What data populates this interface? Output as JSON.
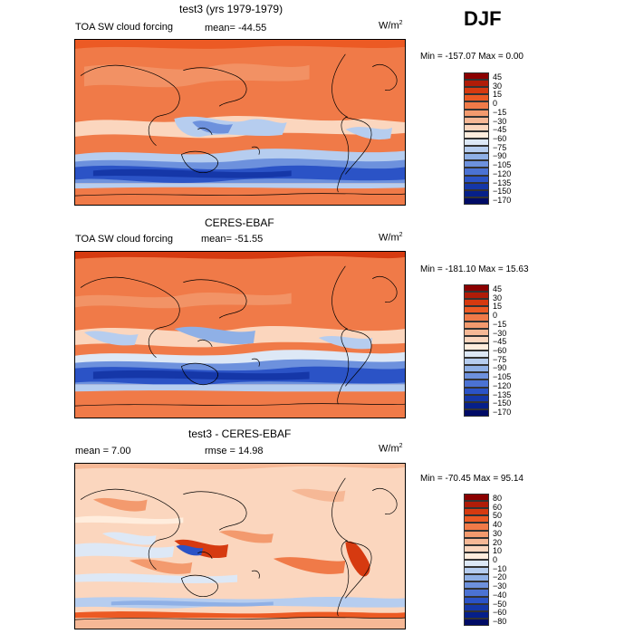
{
  "season": "DJF",
  "panels": [
    {
      "id": "model",
      "title": "test3 (yrs 1979-1979)",
      "field": "TOA SW cloud forcing",
      "stat_text": "mean=  -44.55",
      "units_base": "W/m",
      "units_sup": "2",
      "min_max": "Min = -157.07  Max =    0.00",
      "colors": [
        "#8b0000",
        "#b01c08",
        "#d63a10",
        "#ec5a24",
        "#f07a48",
        "#f39a6e",
        "#f6b896",
        "#fbd6be",
        "#ffeddd",
        "#dde8f6",
        "#b6cdef",
        "#8fb0e6",
        "#6d91dd",
        "#4b72d3",
        "#2b53c6",
        "#1537a8",
        "#06208a",
        "#000b66"
      ],
      "labels": [
        "45",
        "30",
        "15",
        "0",
        "−15",
        "−30",
        "−45",
        "−60",
        "−75",
        "−90",
        "−105",
        "−120",
        "−135",
        "−150",
        "−170"
      ]
    },
    {
      "id": "obs",
      "title": "CERES-EBAF",
      "field": "TOA SW cloud forcing",
      "stat_text": "mean=  -51.55",
      "units_base": "W/m",
      "units_sup": "2",
      "min_max": "Min = -181.10  Max =  15.63",
      "colors": [
        "#8b0000",
        "#b01c08",
        "#d63a10",
        "#ec5a24",
        "#f07a48",
        "#f39a6e",
        "#f6b896",
        "#fbd6be",
        "#ffeddd",
        "#dde8f6",
        "#b6cdef",
        "#8fb0e6",
        "#6d91dd",
        "#4b72d3",
        "#2b53c6",
        "#1537a8",
        "#06208a",
        "#000b66"
      ],
      "labels": [
        "45",
        "30",
        "15",
        "0",
        "−15",
        "−30",
        "−45",
        "−60",
        "−75",
        "−90",
        "−105",
        "−120",
        "−135",
        "−150",
        "−170"
      ]
    },
    {
      "id": "diff",
      "title": "test3 - CERES-EBAF",
      "mean_text": "mean =    7.00",
      "rmse_text": "rmse =   14.98",
      "units_base": "W/m",
      "units_sup": "2",
      "min_max": "Min = -70.45  Max =  95.14",
      "colors": [
        "#8b0000",
        "#b01c08",
        "#d63a10",
        "#ec5a24",
        "#f07a48",
        "#f39a6e",
        "#f6b896",
        "#fbd6be",
        "#ffeddd",
        "#dde8f6",
        "#b6cdef",
        "#8fb0e6",
        "#6d91dd",
        "#4b72d3",
        "#2b53c6",
        "#1537a8",
        "#06208a",
        "#000b66"
      ],
      "labels": [
        "80",
        "60",
        "50",
        "40",
        "30",
        "20",
        "10",
        "0",
        "−10",
        "−20",
        "−30",
        "−40",
        "−50",
        "−60",
        "−80"
      ]
    }
  ]
}
